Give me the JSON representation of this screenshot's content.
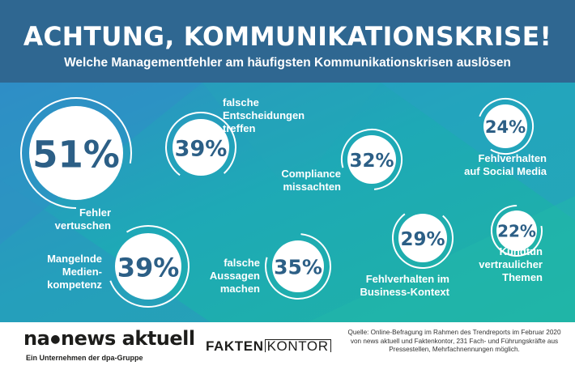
{
  "header": {
    "title": "ACHTUNG, KOMMUNIKATIONSKRISE!",
    "subtitle": "Welche Managementfehler am häufigsten Kommunikationskrisen auslösen"
  },
  "chart_data": {
    "type": "bubble",
    "unit": "%",
    "items": [
      {
        "label": [
          "Fehler",
          "vertuschen"
        ],
        "value": 51
      },
      {
        "label": [
          "falsche",
          "Entscheidungen",
          "treffen"
        ],
        "value": 39
      },
      {
        "label": [
          "Compliance",
          "missachten"
        ],
        "value": 32
      },
      {
        "label": [
          "Fehlverhalten",
          "auf Social Media"
        ],
        "value": 24
      },
      {
        "label": [
          "Mangelnde",
          "Medien-",
          "kompetenz"
        ],
        "value": 39
      },
      {
        "label": [
          "falsche",
          "Aussagen",
          "machen"
        ],
        "value": 35
      },
      {
        "label": [
          "Fehlverhalten im",
          "Business-Kontext"
        ],
        "value": 29
      },
      {
        "label": [
          "Kundtun",
          "vertraulicher",
          "Themen"
        ],
        "value": 22
      }
    ]
  },
  "footer": {
    "logo_left": "na",
    "logo_left_rest": "news aktuell",
    "tagline": "Ein Unternehmen der dpa-Gruppe",
    "logo_right_part1": "FAKTEN",
    "logo_right_part2": "KONTOR",
    "source": "Quelle: Online-Befragung im Rahmen des Trendreports im Februar 2020 von news aktuell und Faktenkontor, 231 Fach- und Führungskräfte aus Pressestellen, Mehrfachnennungen möglich."
  },
  "colors": {
    "header_bg": "#2f6791",
    "teal": "#1fb5ad",
    "blue": "#2f8ec6",
    "number_text": "#2c5f86"
  }
}
